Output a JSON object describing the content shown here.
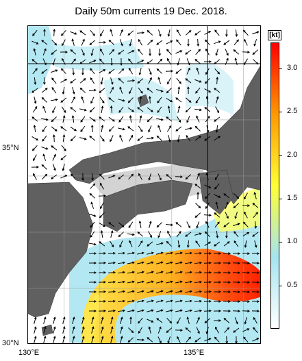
{
  "title": "Daily 50m currents 19 Dec. 2018.",
  "axes": {
    "lat_labels": [
      {
        "label": "35°N",
        "value": 35
      },
      {
        "label": "30°N",
        "value": 30
      }
    ],
    "lon_labels": [
      {
        "label": "130°E",
        "value": 130
      },
      {
        "label": "135°E",
        "value": 135
      }
    ]
  },
  "colorbar": {
    "unit": "[kt]",
    "range": [
      0,
      3.3
    ],
    "ticks": [
      "0.5",
      "1.0",
      "1.5",
      "2.0",
      "2.5",
      "3.0"
    ],
    "tick_values": [
      0.5,
      1.0,
      1.5,
      2.0,
      2.5,
      3.0
    ],
    "colors": [
      "#ffffff",
      "#a6e4ef",
      "#ffff33",
      "#ff9900",
      "#ff0000"
    ]
  },
  "colors": {
    "land": "#606060",
    "coast_shallow": "#d3d3d3",
    "arrow": "#000000",
    "grid": "#9a9a9a"
  }
}
